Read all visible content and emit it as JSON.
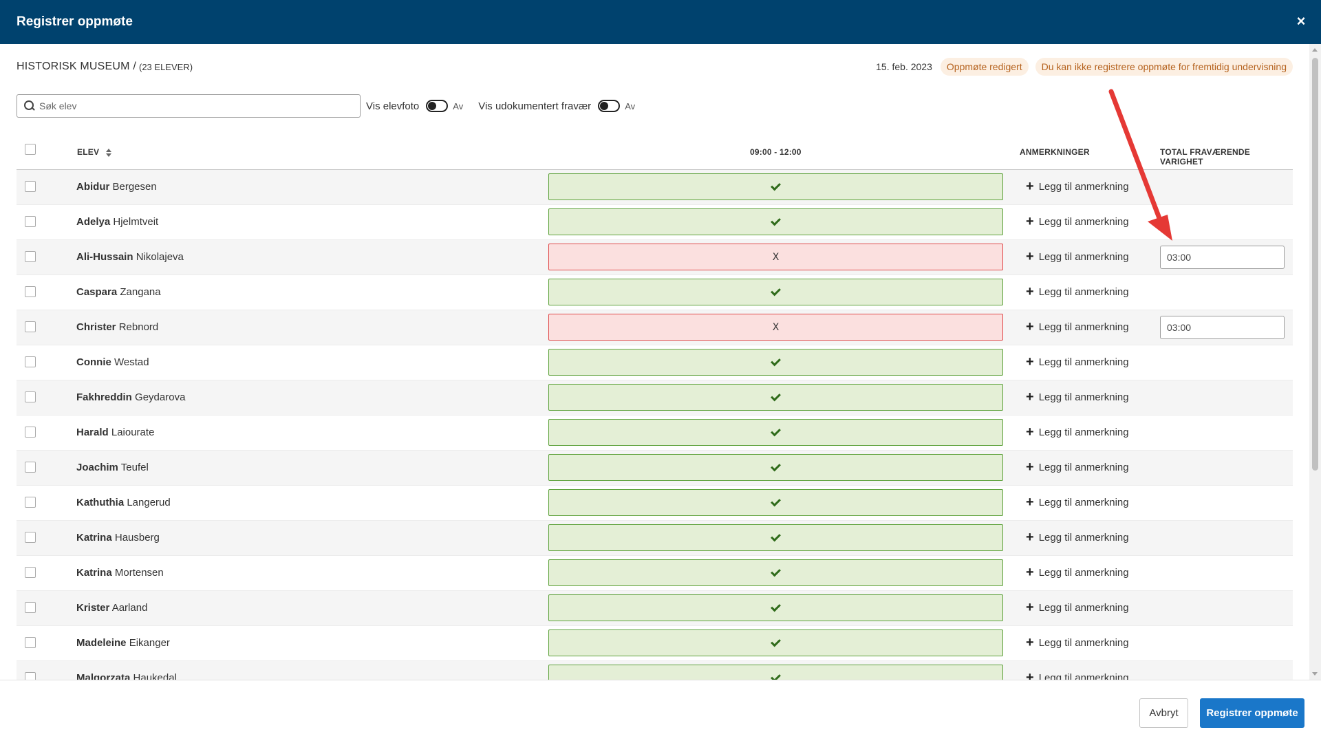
{
  "window": {
    "title": "Registrer oppmøte",
    "close_glyph": "×"
  },
  "info": {
    "course": "HISTORISK MUSEUM /",
    "count": "(23 ELEVER)",
    "date": "15. feb. 2023",
    "badge_edited": "Oppmøte redigert",
    "badge_future": "Du kan ikke registrere oppmøte for fremtidig undervisning"
  },
  "toolbar": {
    "search_placeholder": "Søk elev",
    "toggle_photo_label": "Vis elevfoto",
    "toggle_photo_state": "Av",
    "toggle_absence_label": "Vis udokumentert fravær",
    "toggle_absence_state": "Av"
  },
  "table": {
    "headers": {
      "student": "ELEV",
      "session": "09:00 - 12:00",
      "remarks": "ANMERKNINGER",
      "total_absence": "TOTAL FRAVÆRENDE VARIGHET"
    },
    "add_remark_label": "Legg til anmerkning",
    "absent_glyph": "X",
    "rows": [
      {
        "first": "Abidur",
        "last": "Bergesen",
        "status": "present",
        "duration": ""
      },
      {
        "first": "Adelya",
        "last": "Hjelmtveit",
        "status": "present",
        "duration": ""
      },
      {
        "first": "Ali-Hussain",
        "last": "Nikolajeva",
        "status": "absent",
        "duration": "03:00"
      },
      {
        "first": "Caspara",
        "last": "Zangana",
        "status": "present",
        "duration": ""
      },
      {
        "first": "Christer",
        "last": "Rebnord",
        "status": "absent",
        "duration": "03:00"
      },
      {
        "first": "Connie",
        "last": "Westad",
        "status": "present",
        "duration": ""
      },
      {
        "first": "Fakhreddin",
        "last": "Geydarova",
        "status": "present",
        "duration": ""
      },
      {
        "first": "Harald",
        "last": "Laiourate",
        "status": "present",
        "duration": ""
      },
      {
        "first": "Joachim",
        "last": "Teufel",
        "status": "present",
        "duration": ""
      },
      {
        "first": "Kathuthia",
        "last": "Langerud",
        "status": "present",
        "duration": ""
      },
      {
        "first": "Katrina",
        "last": "Hausberg",
        "status": "present",
        "duration": ""
      },
      {
        "first": "Katrina",
        "last": "Mortensen",
        "status": "present",
        "duration": ""
      },
      {
        "first": "Krister",
        "last": "Aarland",
        "status": "present",
        "duration": ""
      },
      {
        "first": "Madeleine",
        "last": "Eikanger",
        "status": "present",
        "duration": ""
      },
      {
        "first": "Malgorzata",
        "last": "Haukedal",
        "status": "present",
        "duration": ""
      }
    ]
  },
  "footer": {
    "cancel_label": "Avbryt",
    "submit_label": "Registrer oppmøte"
  },
  "colors": {
    "header_bg": "#00426e",
    "present_bg": "#e4efd6",
    "absent_bg": "#fbe0df",
    "badge_text": "#b5621e",
    "primary_button": "#1a77c9",
    "annotation_arrow": "#e53935"
  }
}
